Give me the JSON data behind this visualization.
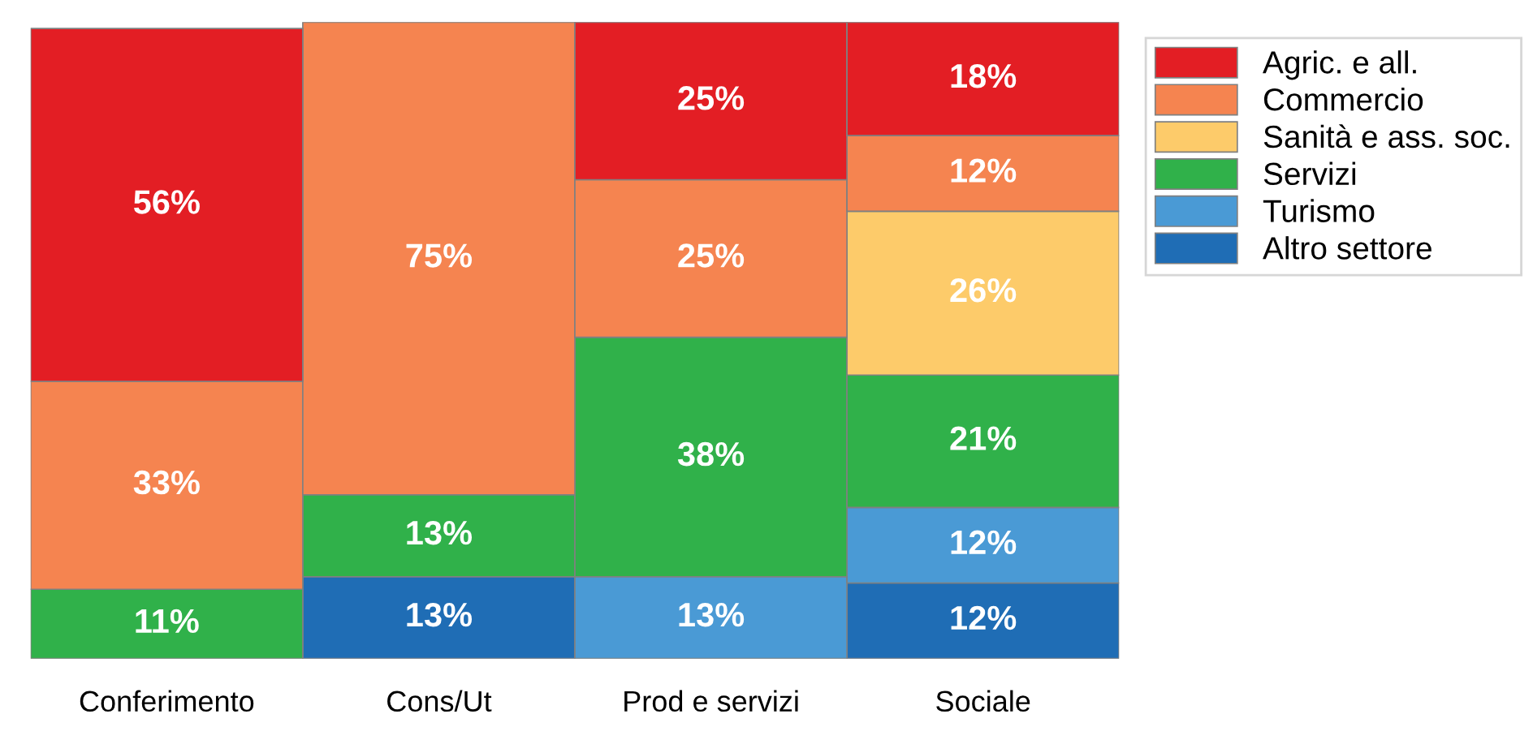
{
  "chart_data": {
    "type": "bar",
    "stacked": true,
    "legend": "top right",
    "grid": false,
    "categories": [
      "Conferimento",
      "Cons/Ut",
      "Prod e servizi",
      "Sociale"
    ],
    "series": [
      {
        "name": "Altro settore",
        "color": "#1f6db5",
        "values": [
          null,
          13,
          null,
          12
        ],
        "value_labels": [
          null,
          "13%",
          null,
          "12%"
        ]
      },
      {
        "name": "Turismo",
        "color": "#4a9ad5",
        "values": [
          null,
          null,
          13,
          12
        ],
        "value_labels": [
          null,
          null,
          "13%",
          "12%"
        ]
      },
      {
        "name": "Servizi",
        "color": "#30b14a",
        "values": [
          11,
          13,
          38,
          21
        ],
        "value_labels": [
          "11%",
          "13%",
          "38%",
          "21%"
        ]
      },
      {
        "name": "Sanità e ass. soc.",
        "color": "#fdcb6a",
        "values": [
          null,
          null,
          null,
          26
        ],
        "value_labels": [
          null,
          null,
          null,
          "26%"
        ]
      },
      {
        "name": "Commercio",
        "color": "#f58450",
        "values": [
          33,
          75,
          25,
          12
        ],
        "value_labels": [
          "33%",
          "75%",
          "25%",
          "12%"
        ]
      },
      {
        "name": "Agric. e all.",
        "color": "#e31e24",
        "values": [
          56,
          null,
          25,
          18
        ],
        "value_labels": [
          "56%",
          null,
          "25%",
          "18%"
        ]
      }
    ]
  }
}
